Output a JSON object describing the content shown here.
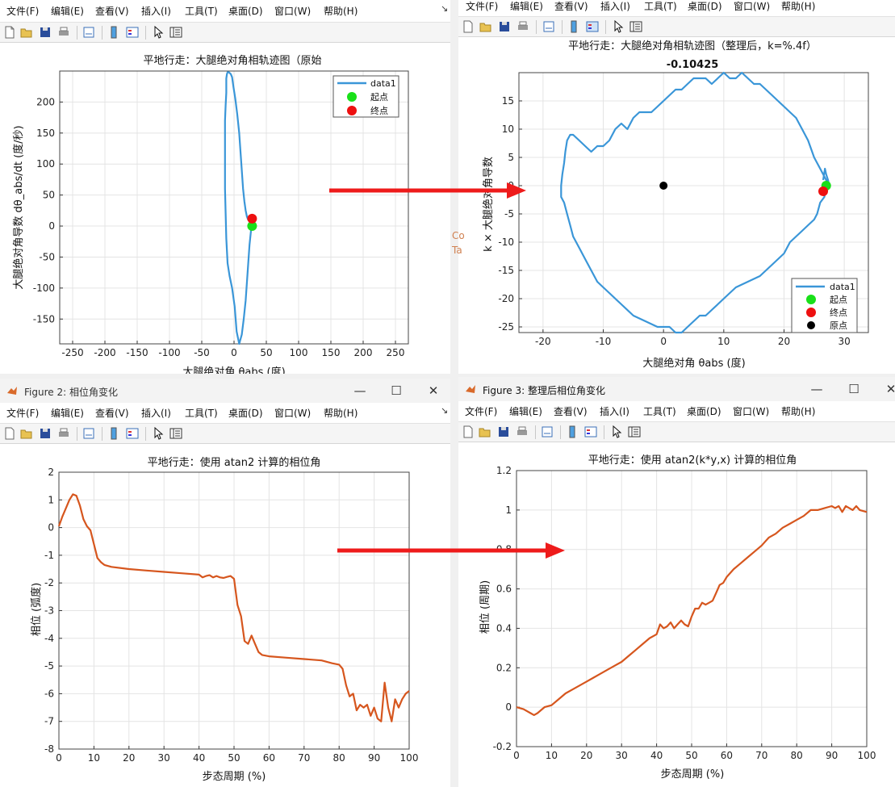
{
  "menu": [
    "文件(F)",
    "编辑(E)",
    "查看(V)",
    "插入(I)",
    "工具(T)",
    "桌面(D)",
    "窗口(W)",
    "帮助(H)"
  ],
  "menu_pin": "↘",
  "win_buttons": {
    "minimize": "—",
    "maximize": "☐",
    "close": "✕"
  },
  "windows": {
    "fig2_title": "Figure 2: 相位角变化",
    "fig3_title": "Figure 3: 整理后相位角变化"
  },
  "stray": [
    "Co",
    "Ta"
  ],
  "colors": {
    "line": "#3a96d8",
    "phase": "#d6561e",
    "start": "#19e019",
    "end": "#ee1010",
    "origin": "#000000",
    "arrow": "#ee1b1b"
  },
  "charts": {
    "p1": {
      "title": "平地行走：大腿绝对角相轨迹图（原始",
      "xlabel_pre": "大腿绝对角 ",
      "xlabel_theta": "θ",
      "xlabel_sub": "a",
      "xlabel_post": "bs (度)",
      "ylabel": "大腿绝对角导数 dθ_abs/dt (度/秒)",
      "xticks": [
        "-250",
        "-200",
        "-150",
        "-100",
        "-50",
        "0",
        "50",
        "100",
        "150",
        "200",
        "250"
      ],
      "yticks": [
        "200",
        "150",
        "100",
        "50",
        "0",
        "-50",
        "-100",
        "-150"
      ],
      "legend": [
        "data1",
        "起点",
        "终点"
      ]
    },
    "p2": {
      "title": "平地行走：大腿绝对角相轨迹图（整理后，k=%.4f）",
      "subtitle": "-0.10425",
      "xlabel_pre": "大腿绝对角 ",
      "xlabel_theta": "θ",
      "xlabel_sub": "a",
      "xlabel_post": "bs (度)",
      "ylabel": "k × 大腿绝对角导数",
      "xticks": [
        "-20",
        "-10",
        "0",
        "10",
        "20",
        "30"
      ],
      "yticks": [
        "15",
        "10",
        "5",
        "0",
        "-5",
        "-10",
        "-15",
        "-20",
        "-25"
      ],
      "legend": [
        "data1",
        "起点",
        "终点",
        "原点"
      ]
    },
    "p3": {
      "title": "平地行走：使用 atan2 计算的相位角",
      "xlabel": "步态周期 (%)",
      "ylabel": "相位 (弧度)",
      "xticks": [
        "0",
        "10",
        "20",
        "30",
        "40",
        "50",
        "60",
        "70",
        "80",
        "90",
        "100"
      ],
      "yticks": [
        "2",
        "1",
        "0",
        "-1",
        "-2",
        "-3",
        "-4",
        "-5",
        "-6",
        "-7",
        "-8"
      ]
    },
    "p4": {
      "title": "平地行走：使用 atan2(k*y,x) 计算的相位角",
      "xlabel": "步态周期 (%)",
      "ylabel": "相位 (周期)",
      "xticks": [
        "0",
        "10",
        "20",
        "30",
        "40",
        "50",
        "60",
        "70",
        "80",
        "90",
        "100"
      ],
      "yticks": [
        "1.2",
        "1",
        "0.8",
        "0.6",
        "0.4",
        "0.2",
        "0",
        "-0.2"
      ]
    }
  },
  "chart_data": [
    {
      "type": "line",
      "title": "平地行走：大腿绝对角相轨迹图（原始",
      "xlabel": "大腿绝对角 θ_abs (度)",
      "ylabel": "大腿绝对角导数 dθ_abs/dt (度/秒)",
      "xlim": [
        -270,
        270
      ],
      "ylim": [
        -190,
        250
      ],
      "grid": true,
      "legend": "top-right",
      "series": [
        {
          "name": "data1",
          "x": [
            27,
            24,
            22,
            20,
            18,
            15,
            12,
            8,
            4,
            1,
            -3,
            -7,
            -10,
            -12,
            -13,
            -14,
            -14,
            -14,
            -14,
            -13,
            -12,
            -12,
            -12,
            -11,
            -10,
            -8,
            -5,
            -3,
            -1,
            2,
            5,
            8,
            10,
            12,
            14,
            16,
            18,
            20,
            22,
            24,
            26,
            27,
            28,
            27,
            27
          ],
          "y": [
            0,
            -30,
            -60,
            -90,
            -120,
            -150,
            -175,
            -190,
            -170,
            -130,
            -100,
            -80,
            -60,
            -20,
            20,
            60,
            100,
            140,
            170,
            195,
            215,
            230,
            238,
            245,
            248,
            248,
            245,
            240,
            225,
            205,
            180,
            150,
            120,
            90,
            60,
            40,
            25,
            15,
            10,
            10,
            10,
            10,
            10,
            5,
            0
          ]
        },
        {
          "name": "起点",
          "x": [
            28
          ],
          "y": [
            0
          ]
        },
        {
          "name": "终点",
          "x": [
            28
          ],
          "y": [
            12
          ]
        }
      ]
    },
    {
      "type": "line",
      "title": "平地行走：大腿绝对角相轨迹图（整理后，k=%.4f）",
      "subtitle": "-0.10425",
      "xlabel": "大腿绝对角 θ_abs (度)",
      "ylabel": "k × 大腿绝对角导数",
      "xlim": [
        -24,
        34
      ],
      "ylim": [
        -26,
        20
      ],
      "grid": true,
      "legend": "bottom-right",
      "series": [
        {
          "name": "data1",
          "x": [
            27,
            26.7,
            26,
            25.5,
            25,
            24,
            23,
            22,
            21,
            20,
            18,
            16,
            14,
            12,
            11,
            10,
            9,
            8,
            7,
            6,
            5,
            4,
            3,
            2,
            1,
            -1,
            -3,
            -5,
            -7,
            -9,
            -10,
            -11,
            -12,
            -13,
            -14,
            -15,
            -15.5,
            -16,
            -16.5,
            -17,
            -17,
            -16.8,
            -16.5,
            -16.3,
            -16,
            -15.5,
            -15,
            -14,
            -13,
            -12,
            -11,
            -10,
            -9,
            -8,
            -7,
            -6,
            -5,
            -4,
            -3,
            -2,
            -1,
            0,
            1,
            2,
            3,
            4,
            5,
            6,
            7,
            8,
            9,
            10,
            11,
            12,
            13,
            14,
            15,
            16,
            17,
            18,
            19,
            20,
            21,
            22,
            23,
            24,
            25,
            26,
            27,
            27.5,
            27.3,
            27,
            26.8,
            26.5
          ],
          "y": [
            0,
            -2,
            -3,
            -5,
            -6,
            -7,
            -8,
            -9,
            -10,
            -12,
            -14,
            -16,
            -17,
            -18,
            -19,
            -20,
            -21,
            -22,
            -23,
            -23,
            -24,
            -25,
            -26,
            -26,
            -25,
            -25,
            -24,
            -23,
            -21,
            -19,
            -18,
            -17,
            -15,
            -13,
            -11,
            -9,
            -7,
            -5,
            -3,
            -2,
            0,
            2,
            4,
            6,
            8,
            9,
            9,
            8,
            7,
            6,
            7,
            7,
            8,
            10,
            11,
            10,
            12,
            13,
            13,
            13,
            14,
            15,
            16,
            17,
            17,
            18,
            19,
            19,
            19,
            18,
            19,
            20,
            19,
            19,
            20,
            19,
            18,
            18,
            17,
            16,
            15,
            14,
            13,
            12,
            10,
            8,
            5,
            3,
            1,
            0,
            1,
            2,
            3,
            1
          ]
        },
        {
          "name": "起点",
          "x": [
            27
          ],
          "y": [
            0
          ]
        },
        {
          "name": "终点",
          "x": [
            26.5
          ],
          "y": [
            -1
          ]
        },
        {
          "name": "原点",
          "x": [
            0
          ],
          "y": [
            0
          ]
        }
      ]
    },
    {
      "type": "line",
      "title": "平地行走：使用 atan2 计算的相位角",
      "xlabel": "步态周期 (%)",
      "ylabel": "相位 (弧度)",
      "xlim": [
        0,
        100
      ],
      "ylim": [
        -8,
        2
      ],
      "grid": true,
      "series": [
        {
          "name": "",
          "x": [
            0,
            1,
            2,
            3,
            4,
            5,
            6,
            7,
            8,
            9,
            10,
            11,
            12,
            13,
            15,
            20,
            25,
            30,
            35,
            40,
            41,
            42,
            43,
            44,
            45,
            46,
            47,
            48,
            49,
            50,
            51,
            52,
            53,
            54,
            55,
            56,
            57,
            58,
            60,
            65,
            70,
            75,
            78,
            80,
            81,
            82,
            83,
            84,
            85,
            86,
            87,
            88,
            89,
            90,
            91,
            92,
            93,
            94,
            95,
            96,
            97,
            98,
            99,
            100
          ],
          "y": [
            0.05,
            0.4,
            0.7,
            1.0,
            1.2,
            1.15,
            0.8,
            0.3,
            0.05,
            -0.1,
            -0.6,
            -1.1,
            -1.25,
            -1.35,
            -1.42,
            -1.5,
            -1.55,
            -1.6,
            -1.65,
            -1.7,
            -1.8,
            -1.75,
            -1.72,
            -1.8,
            -1.75,
            -1.8,
            -1.82,
            -1.78,
            -1.75,
            -1.85,
            -2.8,
            -3.2,
            -4.1,
            -4.2,
            -3.9,
            -4.2,
            -4.5,
            -4.6,
            -4.65,
            -4.7,
            -4.75,
            -4.8,
            -4.9,
            -4.95,
            -5.1,
            -5.7,
            -6.1,
            -6.0,
            -6.6,
            -6.4,
            -6.5,
            -6.4,
            -6.8,
            -6.5,
            -6.9,
            -7.0,
            -5.6,
            -6.5,
            -7.0,
            -6.2,
            -6.5,
            -6.2,
            -6.0,
            -5.9
          ]
        }
      ]
    },
    {
      "type": "line",
      "title": "平地行走：使用 atan2(k*y,x) 计算的相位角",
      "xlabel": "步态周期 (%)",
      "ylabel": "相位 (周期)",
      "xlim": [
        0,
        100
      ],
      "ylim": [
        -0.2,
        1.2
      ],
      "grid": true,
      "series": [
        {
          "name": "",
          "x": [
            0,
            2,
            4,
            5,
            6,
            8,
            10,
            12,
            14,
            16,
            18,
            20,
            22,
            24,
            26,
            28,
            30,
            32,
            34,
            36,
            38,
            40,
            41,
            42,
            43,
            44,
            45,
            46,
            47,
            48,
            49,
            50,
            51,
            52,
            53,
            54,
            55,
            56,
            57,
            58,
            59,
            60,
            62,
            64,
            66,
            68,
            70,
            72,
            74,
            76,
            78,
            80,
            82,
            84,
            86,
            88,
            90,
            91,
            92,
            93,
            94,
            95,
            96,
            97,
            98,
            100
          ],
          "y": [
            0,
            -0.01,
            -0.03,
            -0.04,
            -0.03,
            0,
            0.01,
            0.04,
            0.07,
            0.09,
            0.11,
            0.13,
            0.15,
            0.17,
            0.19,
            0.21,
            0.23,
            0.26,
            0.29,
            0.32,
            0.35,
            0.37,
            0.42,
            0.4,
            0.41,
            0.43,
            0.4,
            0.42,
            0.44,
            0.42,
            0.41,
            0.46,
            0.5,
            0.5,
            0.53,
            0.52,
            0.53,
            0.54,
            0.58,
            0.62,
            0.63,
            0.66,
            0.7,
            0.73,
            0.76,
            0.79,
            0.82,
            0.86,
            0.88,
            0.91,
            0.93,
            0.95,
            0.97,
            1.0,
            1.0,
            1.01,
            1.02,
            1.01,
            1.02,
            0.99,
            1.02,
            1.01,
            1.0,
            1.02,
            1.0,
            0.99
          ]
        }
      ]
    }
  ]
}
